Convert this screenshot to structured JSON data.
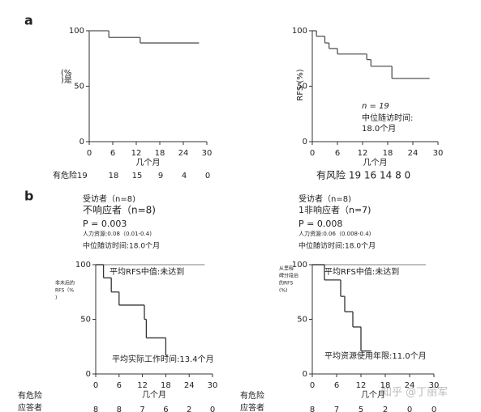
{
  "panel_labels": [
    "a",
    "b"
  ],
  "watermark": "知乎 @丁丽军",
  "chart_data": [
    {
      "type": "step",
      "y_label": [
        "(%",
        ")是"
      ],
      "x_label": "几个月",
      "xlim": [
        0,
        30
      ],
      "ylim": [
        0,
        100
      ],
      "xticks": [
        0,
        6,
        12,
        18,
        24,
        30
      ],
      "yticks": [
        0,
        50,
        100
      ],
      "series": [
        {
          "color": "#555555",
          "x": [
            0,
            5,
            13,
            28
          ],
          "values": [
            100,
            94,
            89,
            89
          ]
        }
      ],
      "risk_label": "有危险19",
      "risk_values": [
        18,
        15,
        9,
        4,
        0
      ]
    },
    {
      "type": "step",
      "y_label": [
        "RFS (%)"
      ],
      "x_label": "几个月",
      "xlim": [
        0,
        30
      ],
      "ylim": [
        0,
        100
      ],
      "xticks": [
        0,
        6,
        12,
        18,
        24,
        30
      ],
      "yticks": [
        0,
        50,
        100
      ],
      "series": [
        {
          "color": "#555555",
          "x": [
            0,
            1,
            3,
            4,
            6,
            13,
            14,
            19,
            28
          ],
          "values": [
            100,
            95,
            89,
            84,
            79,
            74,
            68,
            57,
            57
          ]
        }
      ],
      "annotations": [
        "n = 19",
        "中位随访时间:",
        "18.0个月"
      ],
      "risk_label": "有风险 19 16 14 8 0"
    },
    {
      "type": "step",
      "header": [
        "受访者（n=8)",
        "不响应者（n=8)",
        "P = 0.003",
        "人力资源:0.08（0.01-0.4)",
        "中位随访时间:18.0个月"
      ],
      "y_label": [
        "非未后的",
        "RFS（%",
        ")"
      ],
      "x_label": "几个月",
      "xlim": [
        0,
        30
      ],
      "ylim": [
        0,
        100
      ],
      "xticks": [
        0,
        6,
        12,
        18,
        24,
        30
      ],
      "yticks": [
        0,
        50,
        100
      ],
      "series": [
        {
          "color": "#999999",
          "x": [
            0,
            28
          ],
          "values": [
            100,
            100
          ]
        },
        {
          "color": "#333333",
          "x": [
            0,
            2,
            4,
            6,
            12.5,
            13,
            18,
            18.5
          ],
          "values": [
            100,
            88,
            75,
            63,
            50,
            33,
            17,
            17
          ]
        }
      ],
      "annotations": [
        "平均RFS中值:未达到",
        "平均实际工作时间:13.4个月"
      ],
      "risk_label": [
        "有危险",
        "应答者"
      ],
      "risk_values": [
        8,
        8,
        7,
        6,
        2,
        0
      ]
    },
    {
      "type": "step",
      "header": [
        "受访者（n=8)",
        "1非响应者（n=7)",
        "P = 0.008",
        "人力资源:0.06（0.008-0.4)",
        "中位随访时间:18.0个月"
      ],
      "y_label": [
        "从里程",
        "碑分段后",
        "的RFS",
        "(%)"
      ],
      "x_label": "几个月",
      "xlim": [
        0,
        30
      ],
      "ylim": [
        0,
        100
      ],
      "xticks": [
        0,
        6,
        12,
        18,
        24,
        30
      ],
      "yticks": [
        0,
        50,
        100
      ],
      "series": [
        {
          "color": "#999999",
          "x": [
            0,
            28
          ],
          "values": [
            100,
            100
          ]
        },
        {
          "color": "#333333",
          "x": [
            0,
            3,
            7,
            8,
            10,
            12,
            14.5
          ],
          "values": [
            100,
            86,
            71,
            57,
            43,
            21,
            21
          ]
        }
      ],
      "annotations": [
        "平均RFS中值:未达到",
        "平均资源使用年限:11.0个月"
      ],
      "risk_label": [
        "有危险",
        "应答者"
      ],
      "risk_values": [
        8,
        7,
        5,
        2,
        0,
        0
      ]
    }
  ]
}
